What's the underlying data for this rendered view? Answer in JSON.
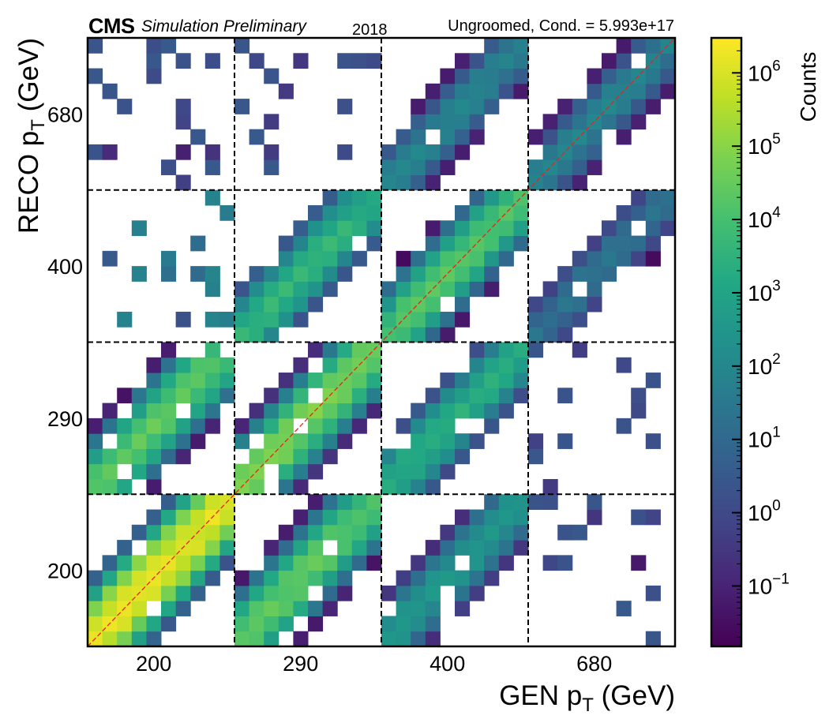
{
  "header": {
    "experiment": "CMS",
    "status": "Simulation Preliminary",
    "year": "2018",
    "condition": "Ungroomed, Cond. = 5.993e+17"
  },
  "chart_data": {
    "type": "heatmap",
    "title": "",
    "xlabel": "GEN p_T (GeV)",
    "ylabel": "RECO p_T (GeV)",
    "x_bin_labels": [
      "200",
      "290",
      "400",
      "680"
    ],
    "y_bin_labels": [
      "200",
      "290",
      "400",
      "680"
    ],
    "colorbar": {
      "label": "Counts",
      "scale": "log",
      "range": [
        0.015,
        3000000
      ],
      "colormap": "viridis",
      "ticks": [
        {
          "value": 0.1,
          "base": "10",
          "exp": "−1"
        },
        {
          "value": 1,
          "base": "10",
          "exp": "0"
        },
        {
          "value": 10,
          "base": "10",
          "exp": "1"
        },
        {
          "value": 100,
          "base": "10",
          "exp": "2"
        },
        {
          "value": 1000,
          "base": "10",
          "exp": "3"
        },
        {
          "value": 10000,
          "base": "10",
          "exp": "4"
        },
        {
          "value": 100000,
          "base": "10",
          "exp": "5"
        },
        {
          "value": 1000000,
          "base": "10",
          "exp": "6"
        }
      ]
    },
    "blocks": [
      {
        "gen": "200",
        "reco": "200",
        "peak_counts": 2000000,
        "shape": "diagonal"
      },
      {
        "gen": "290",
        "reco": "200",
        "peak_counts": 30000,
        "shape": "diagonal"
      },
      {
        "gen": "400",
        "reco": "200",
        "peak_counts": 500,
        "shape": "diagonal"
      },
      {
        "gen": "680",
        "reco": "200",
        "peak_counts": 1,
        "shape": "sparse"
      },
      {
        "gen": "200",
        "reco": "290",
        "peak_counts": 30000,
        "shape": "diagonal"
      },
      {
        "gen": "290",
        "reco": "290",
        "peak_counts": 80000,
        "shape": "diagonal"
      },
      {
        "gen": "400",
        "reco": "290",
        "peak_counts": 3000,
        "shape": "diagonal"
      },
      {
        "gen": "680",
        "reco": "290",
        "peak_counts": 1,
        "shape": "sparse"
      },
      {
        "gen": "200",
        "reco": "400",
        "peak_counts": 30,
        "shape": "sparse"
      },
      {
        "gen": "290",
        "reco": "400",
        "peak_counts": 5000,
        "shape": "diagonal"
      },
      {
        "gen": "400",
        "reco": "400",
        "peak_counts": 20000,
        "shape": "diagonal"
      },
      {
        "gen": "680",
        "reco": "400",
        "peak_counts": 30,
        "shape": "diagonal"
      },
      {
        "gen": "200",
        "reco": "680",
        "peak_counts": 1,
        "shape": "sparse"
      },
      {
        "gen": "290",
        "reco": "680",
        "peak_counts": 1,
        "shape": "sparse"
      },
      {
        "gen": "400",
        "reco": "680",
        "peak_counts": 100,
        "shape": "diagonal"
      },
      {
        "gen": "680",
        "reco": "680",
        "peak_counts": 100,
        "shape": "diagonal"
      }
    ],
    "grid": true,
    "diagonal_reference_line": true
  }
}
